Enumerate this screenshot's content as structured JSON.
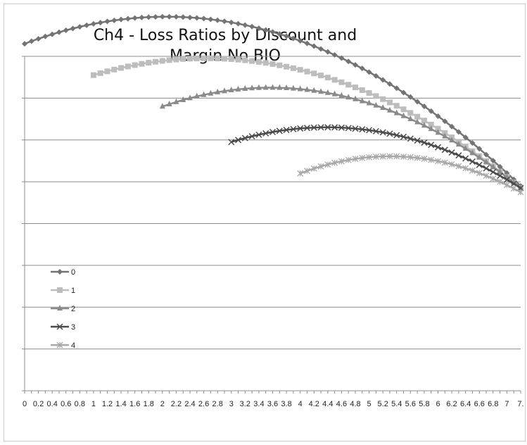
{
  "chart_data": {
    "type": "line",
    "title": "Ch4 - Loss Ratios by Discount and Margin No BIO",
    "xlabel": "",
    "ylabel": "",
    "x_tick_labels": [
      "0",
      "0.2",
      "0.4",
      "0.6",
      "0.8",
      "1",
      "1.2",
      "1.4",
      "1.6",
      "1.8",
      "2",
      "2.2",
      "2.4",
      "2.6",
      "2.8",
      "3",
      "3.2",
      "3.4",
      "3.6",
      "3.8",
      "4",
      "4.2",
      "4.4",
      "4.6",
      "4.8",
      "5",
      "5.2",
      "5.4",
      "5.6",
      "5.8",
      "6",
      "6.2",
      "6.4",
      "6.6",
      "6.8",
      "7",
      "7."
    ],
    "xlim": [
      0,
      7.2
    ],
    "ylim": [
      0,
      8
    ],
    "y_tick_labels_visible": false,
    "grid": "horizontal",
    "legend_position": "left-middle",
    "series": [
      {
        "name": "0",
        "color": "#737373",
        "marker": "diamond",
        "x": [
          0,
          1.5,
          7.2
        ],
        "y": [
          8.3,
          8.9,
          4.9
        ]
      },
      {
        "name": "1",
        "color": "#bdbdbd",
        "marker": "square",
        "x": [
          1,
          2.5,
          7.2
        ],
        "y": [
          7.55,
          7.95,
          4.85
        ]
      },
      {
        "name": "2",
        "color": "#8a8a8a",
        "marker": "triangle",
        "x": [
          2,
          3.5,
          7.2
        ],
        "y": [
          6.8,
          7.25,
          4.85
        ]
      },
      {
        "name": "3",
        "color": "#4a4a4a",
        "marker": "x",
        "x": [
          3,
          4.5,
          7.2
        ],
        "y": [
          5.95,
          6.3,
          4.85
        ]
      },
      {
        "name": "4",
        "color": "#a8a8a8",
        "marker": "asterisk",
        "x": [
          4,
          5.5,
          7.2
        ],
        "y": [
          5.2,
          5.6,
          4.75
        ]
      }
    ]
  }
}
